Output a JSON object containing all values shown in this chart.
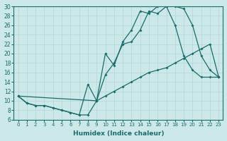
{
  "xlabel": "Humidex (Indice chaleur)",
  "bg_color": "#cce8e8",
  "line_color": "#1a6b6b",
  "xlim": [
    -0.5,
    23.5
  ],
  "ylim": [
    6,
    30
  ],
  "yticks": [
    6,
    8,
    10,
    12,
    14,
    16,
    18,
    20,
    22,
    24,
    26,
    28,
    30
  ],
  "xticks": [
    0,
    1,
    2,
    3,
    4,
    5,
    6,
    7,
    8,
    9,
    10,
    11,
    12,
    13,
    14,
    15,
    16,
    17,
    18,
    19,
    20,
    21,
    22,
    23
  ],
  "line1_x": [
    0,
    1,
    2,
    3,
    4,
    5,
    6,
    7,
    8,
    9,
    10,
    11,
    12,
    13,
    14,
    15,
    16,
    17,
    18,
    19,
    20,
    21,
    22,
    23
  ],
  "line1_y": [
    11.0,
    9.5,
    9.0,
    9.0,
    8.5,
    8.0,
    7.5,
    7.0,
    7.0,
    10.0,
    11.0,
    12.0,
    13.0,
    14.0,
    15.0,
    16.0,
    16.5,
    17.0,
    18.0,
    19.0,
    20.0,
    21.0,
    22.0,
    15.0
  ],
  "line2_x": [
    0,
    1,
    2,
    3,
    4,
    5,
    6,
    7,
    8,
    9,
    10,
    11,
    12,
    13,
    14,
    15,
    16,
    17,
    18,
    19,
    20,
    21,
    22,
    23
  ],
  "line2_y": [
    11.0,
    9.5,
    9.0,
    9.0,
    8.5,
    8.0,
    7.5,
    7.0,
    13.5,
    10.0,
    20.0,
    17.5,
    22.5,
    25.0,
    29.0,
    28.5,
    30.0,
    30.0,
    26.0,
    19.5,
    16.5,
    15.0,
    15.0,
    15.0
  ],
  "line3_x": [
    0,
    9,
    10,
    11,
    12,
    13,
    14,
    15,
    16,
    17,
    18,
    19,
    20,
    21,
    22,
    23
  ],
  "line3_y": [
    11.0,
    10.0,
    15.5,
    18.0,
    22.0,
    22.5,
    25.0,
    29.0,
    28.5,
    30.0,
    30.0,
    29.5,
    26.0,
    19.5,
    16.5,
    15.0
  ]
}
